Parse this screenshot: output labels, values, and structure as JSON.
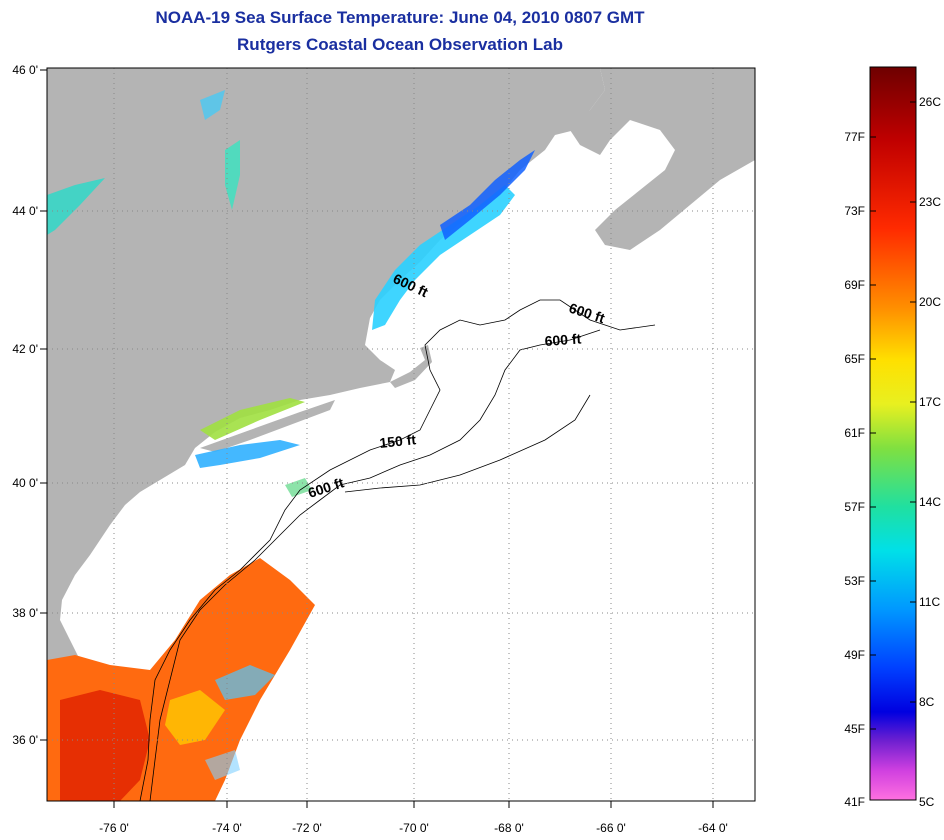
{
  "header": {
    "title": "NOAA-19 Sea Surface Temperature:  June 04, 2010 0807 GMT",
    "subtitle": "Rutgers Coastal Ocean Observation Lab"
  },
  "map": {
    "lat_labels": [
      "46 0'",
      "44 0'",
      "42 0'",
      "40 0'",
      "38 0'",
      "36 0'"
    ],
    "lon_labels": [
      "-76 0'",
      "-74 0'",
      "-72 0'",
      "-70 0'",
      "-68 0'",
      "-66 0'",
      "-64 0'"
    ],
    "depth_labels": [
      "600 ft",
      "600 ft",
      "600 ft",
      "150 ft",
      "600 ft"
    ],
    "colors": {
      "land": "#b4b4b4",
      "ocean": "#ffffff",
      "grid": "#888888"
    }
  },
  "colorbar": {
    "f_labels": [
      "77F",
      "73F",
      "69F",
      "65F",
      "61F",
      "57F",
      "53F",
      "49F",
      "45F",
      "41F"
    ],
    "c_labels": [
      "26C",
      "23C",
      "20C",
      "17C",
      "14C",
      "11C",
      "8C",
      "5C"
    ],
    "gradient": [
      "#7a0000",
      "#c80000",
      "#ff2000",
      "#ff8000",
      "#ffd000",
      "#ffff00",
      "#a8e830",
      "#40e080",
      "#00e8e8",
      "#0090ff",
      "#0030ff",
      "#0000e0",
      "#8000d0",
      "#c040e0",
      "#ff40ff",
      "#ff80e0"
    ]
  }
}
